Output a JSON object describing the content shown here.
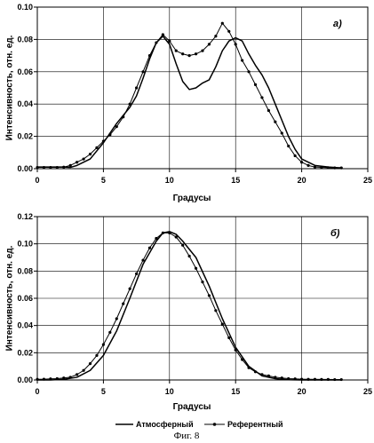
{
  "chart_data": [
    {
      "type": "line",
      "panel_label": "a)",
      "xlabel": "Градусы",
      "ylabel": "Интенсивность, отн. ед.",
      "xlim": [
        0,
        25
      ],
      "ylim": [
        0,
        0.1
      ],
      "x_ticks": [
        0,
        5,
        10,
        15,
        20,
        25
      ],
      "y_ticks": [
        0.0,
        0.02,
        0.04,
        0.06,
        0.08,
        0.1
      ],
      "y_tick_labels": [
        "0.00",
        "0.02",
        "0.04",
        "0.06",
        "0.08",
        "0.10"
      ],
      "grid": true,
      "series": [
        {
          "name": "Атмосферный",
          "marker": "none",
          "points": [
            [
              0,
              0.001
            ],
            [
              1,
              0.001
            ],
            [
              2,
              0.001
            ],
            [
              2.5,
              0.0008
            ],
            [
              3,
              0.002
            ],
            [
              4,
              0.006
            ],
            [
              5,
              0.016
            ],
            [
              6,
              0.028
            ],
            [
              7,
              0.038
            ],
            [
              7.5,
              0.045
            ],
            [
              8,
              0.056
            ],
            [
              8.5,
              0.068
            ],
            [
              9,
              0.078
            ],
            [
              9.5,
              0.082
            ],
            [
              10,
              0.077
            ],
            [
              10.5,
              0.065
            ],
            [
              11,
              0.054
            ],
            [
              11.5,
              0.049
            ],
            [
              12,
              0.05
            ],
            [
              12.5,
              0.053
            ],
            [
              13,
              0.055
            ],
            [
              13.5,
              0.063
            ],
            [
              14,
              0.073
            ],
            [
              14.5,
              0.079
            ],
            [
              15,
              0.081
            ],
            [
              15.5,
              0.079
            ],
            [
              16,
              0.071
            ],
            [
              16.5,
              0.064
            ],
            [
              17,
              0.058
            ],
            [
              17.5,
              0.05
            ],
            [
              18,
              0.04
            ],
            [
              18.5,
              0.03
            ],
            [
              19,
              0.02
            ],
            [
              19.5,
              0.012
            ],
            [
              20,
              0.006
            ],
            [
              21,
              0.002
            ],
            [
              22,
              0.001
            ],
            [
              23,
              0.0005
            ]
          ]
        },
        {
          "name": "Референтный",
          "marker": "dot",
          "points": [
            [
              0,
              0.0008
            ],
            [
              0.5,
              0.0008
            ],
            [
              1,
              0.0008
            ],
            [
              1.5,
              0.0008
            ],
            [
              2,
              0.001
            ],
            [
              2.5,
              0.002
            ],
            [
              3,
              0.004
            ],
            [
              3.5,
              0.006
            ],
            [
              4,
              0.009
            ],
            [
              4.5,
              0.013
            ],
            [
              5,
              0.017
            ],
            [
              5.5,
              0.021
            ],
            [
              6,
              0.026
            ],
            [
              6.5,
              0.032
            ],
            [
              7,
              0.04
            ],
            [
              7.5,
              0.05
            ],
            [
              8,
              0.06
            ],
            [
              8.5,
              0.07
            ],
            [
              9,
              0.078
            ],
            [
              9.5,
              0.083
            ],
            [
              10,
              0.079
            ],
            [
              10.5,
              0.073
            ],
            [
              11,
              0.071
            ],
            [
              11.5,
              0.07
            ],
            [
              12,
              0.071
            ],
            [
              12.5,
              0.073
            ],
            [
              13,
              0.077
            ],
            [
              13.5,
              0.082
            ],
            [
              14,
              0.09
            ],
            [
              14.5,
              0.085
            ],
            [
              15,
              0.077
            ],
            [
              15.5,
              0.067
            ],
            [
              16,
              0.06
            ],
            [
              16.5,
              0.052
            ],
            [
              17,
              0.044
            ],
            [
              17.5,
              0.036
            ],
            [
              18,
              0.029
            ],
            [
              18.5,
              0.022
            ],
            [
              19,
              0.014
            ],
            [
              19.5,
              0.008
            ],
            [
              20,
              0.004
            ],
            [
              20.5,
              0.002
            ],
            [
              21,
              0.001
            ],
            [
              21.5,
              0.0008
            ],
            [
              22,
              0.0006
            ],
            [
              22.5,
              0.0005
            ],
            [
              23,
              0.0005
            ]
          ]
        }
      ]
    },
    {
      "type": "line",
      "panel_label": "б)",
      "xlabel": "Градусы",
      "ylabel": "Интенсивность, отн. ед.",
      "xlim": [
        0,
        25
      ],
      "ylim": [
        0,
        0.12
      ],
      "x_ticks": [
        0,
        5,
        10,
        15,
        20,
        25
      ],
      "y_ticks": [
        0.0,
        0.02,
        0.04,
        0.06,
        0.08,
        0.1,
        0.12
      ],
      "y_tick_labels": [
        "0.00",
        "0.02",
        "0.04",
        "0.06",
        "0.08",
        "0.10",
        "0.12"
      ],
      "grid": true,
      "series": [
        {
          "name": "Атмосферный",
          "marker": "none",
          "points": [
            [
              0,
              0
            ],
            [
              1,
              0
            ],
            [
              2,
              0.0005
            ],
            [
              3,
              0.002
            ],
            [
              4,
              0.007
            ],
            [
              5,
              0.018
            ],
            [
              6,
              0.036
            ],
            [
              7,
              0.06
            ],
            [
              8,
              0.085
            ],
            [
              9,
              0.102
            ],
            [
              9.5,
              0.108
            ],
            [
              10,
              0.109
            ],
            [
              10.5,
              0.107
            ],
            [
              11,
              0.102
            ],
            [
              12,
              0.09
            ],
            [
              13,
              0.069
            ],
            [
              14,
              0.045
            ],
            [
              15,
              0.024
            ],
            [
              16,
              0.01
            ],
            [
              17,
              0.003
            ],
            [
              18,
              0.001
            ],
            [
              19,
              0.0002
            ],
            [
              20,
              0
            ],
            [
              21,
              0
            ],
            [
              22,
              0
            ],
            [
              23,
              0
            ]
          ]
        },
        {
          "name": "Референтный",
          "marker": "dot",
          "points": [
            [
              0,
              0.0005
            ],
            [
              0.5,
              0.0006
            ],
            [
              1,
              0.0008
            ],
            [
              1.5,
              0.001
            ],
            [
              2,
              0.0015
            ],
            [
              2.5,
              0.002
            ],
            [
              3,
              0.004
            ],
            [
              3.5,
              0.007
            ],
            [
              4,
              0.012
            ],
            [
              4.5,
              0.018
            ],
            [
              5,
              0.026
            ],
            [
              5.5,
              0.035
            ],
            [
              6,
              0.045
            ],
            [
              6.5,
              0.056
            ],
            [
              7,
              0.067
            ],
            [
              7.5,
              0.078
            ],
            [
              8,
              0.088
            ],
            [
              8.5,
              0.097
            ],
            [
              9,
              0.104
            ],
            [
              9.5,
              0.108
            ],
            [
              10,
              0.108
            ],
            [
              10.5,
              0.105
            ],
            [
              11,
              0.099
            ],
            [
              11.5,
              0.091
            ],
            [
              12,
              0.082
            ],
            [
              12.5,
              0.072
            ],
            [
              13,
              0.062
            ],
            [
              13.5,
              0.051
            ],
            [
              14,
              0.041
            ],
            [
              14.5,
              0.031
            ],
            [
              15,
              0.022
            ],
            [
              15.5,
              0.015
            ],
            [
              16,
              0.009
            ],
            [
              16.5,
              0.006
            ],
            [
              17,
              0.004
            ],
            [
              17.5,
              0.003
            ],
            [
              18,
              0.002
            ],
            [
              18.5,
              0.0015
            ],
            [
              19,
              0.001
            ],
            [
              19.5,
              0.0008
            ],
            [
              20,
              0.0006
            ],
            [
              20.5,
              0.0005
            ],
            [
              21,
              0.0005
            ],
            [
              21.5,
              0.0004
            ],
            [
              22,
              0.0004
            ],
            [
              22.5,
              0.0003
            ],
            [
              23,
              0.0003
            ]
          ]
        }
      ]
    }
  ],
  "legend": {
    "placement": "bottom-center",
    "entries": [
      {
        "name": "Атмосферный",
        "marker": "none"
      },
      {
        "name": "Референтный",
        "marker": "dot"
      }
    ]
  },
  "caption": "Фиг. 8"
}
